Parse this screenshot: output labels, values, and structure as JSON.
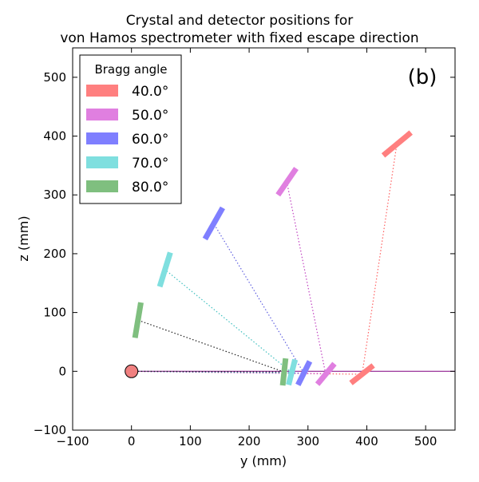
{
  "chart_data": {
    "type": "scatter",
    "title_lines": [
      "Crystal and detector positions for",
      "von Hamos spectrometer with fixed escape direction"
    ],
    "panel_label": "(b)",
    "xlabel": "y (mm)",
    "ylabel": "z (mm)",
    "xlim": [
      -100,
      550
    ],
    "ylim": [
      -100,
      550
    ],
    "x_ticks": [
      -100,
      0,
      100,
      200,
      300,
      400,
      500
    ],
    "y_ticks": [
      -100,
      0,
      100,
      200,
      300,
      400,
      500
    ],
    "x_tick_labels": [
      "−100",
      "0",
      "100",
      "200",
      "300",
      "400",
      "500"
    ],
    "y_tick_labels": [
      "−100",
      "0",
      "100",
      "200",
      "300",
      "400",
      "500"
    ],
    "legend": {
      "title": "Bragg angle",
      "placement": "top-left",
      "entries": [
        "40.0°",
        "50.0°",
        "60.0°",
        "70.0°",
        "80.0°"
      ]
    },
    "source": {
      "y": 0,
      "z": 0,
      "color": "#f08080"
    },
    "escape_line": {
      "z": 0,
      "y_from": 0,
      "y_to": 550,
      "color": "#800080"
    },
    "series": [
      {
        "name": "40.0°",
        "color": "#ff7f7f",
        "line_color": "#ff6060",
        "crystal": {
          "from": [
            373,
            -20
          ],
          "to": [
            411,
            10
          ]
        },
        "crystal_center": [
          392,
          -5
        ],
        "detector": {
          "from": [
            428,
            367
          ],
          "to": [
            475,
            406
          ]
        },
        "detector_center": [
          451,
          386
        ]
      },
      {
        "name": "50.0°",
        "color": "#e07fe0",
        "line_color": "#c040c0",
        "crystal": {
          "from": [
            316,
            -22
          ],
          "to": [
            345,
            13
          ]
        },
        "crystal_center": [
          330,
          -4
        ],
        "detector": {
          "from": [
            249,
            300
          ],
          "to": [
            280,
            345
          ]
        },
        "detector_center": [
          264,
          322
        ]
      },
      {
        "name": "60.0°",
        "color": "#7f7fff",
        "line_color": "#6060e0",
        "crystal": {
          "from": [
            283,
            -23
          ],
          "to": [
            303,
            17
          ]
        },
        "crystal_center": [
          293,
          -3
        ],
        "detector": {
          "from": [
            125,
            225
          ],
          "to": [
            155,
            278
          ]
        },
        "detector_center": [
          140,
          251
        ]
      },
      {
        "name": "70.0°",
        "color": "#7fdfdf",
        "line_color": "#40c0c0",
        "crystal": {
          "from": [
            267,
            -23
          ],
          "to": [
            278,
            20
          ]
        },
        "crystal_center": [
          272,
          -2
        ],
        "detector": {
          "from": [
            48,
            144
          ],
          "to": [
            66,
            202
          ]
        },
        "detector_center": [
          57,
          173
        ]
      },
      {
        "name": "80.0°",
        "color": "#7fbf7f",
        "line_color": "#202020",
        "crystal": {
          "from": [
            257,
            -24
          ],
          "to": [
            262,
            22
          ]
        },
        "crystal_center": [
          259,
          -1
        ],
        "detector": {
          "from": [
            6,
            57
          ],
          "to": [
            16,
            117
          ]
        },
        "detector_center": [
          11,
          87
        ]
      }
    ],
    "grid": false
  }
}
